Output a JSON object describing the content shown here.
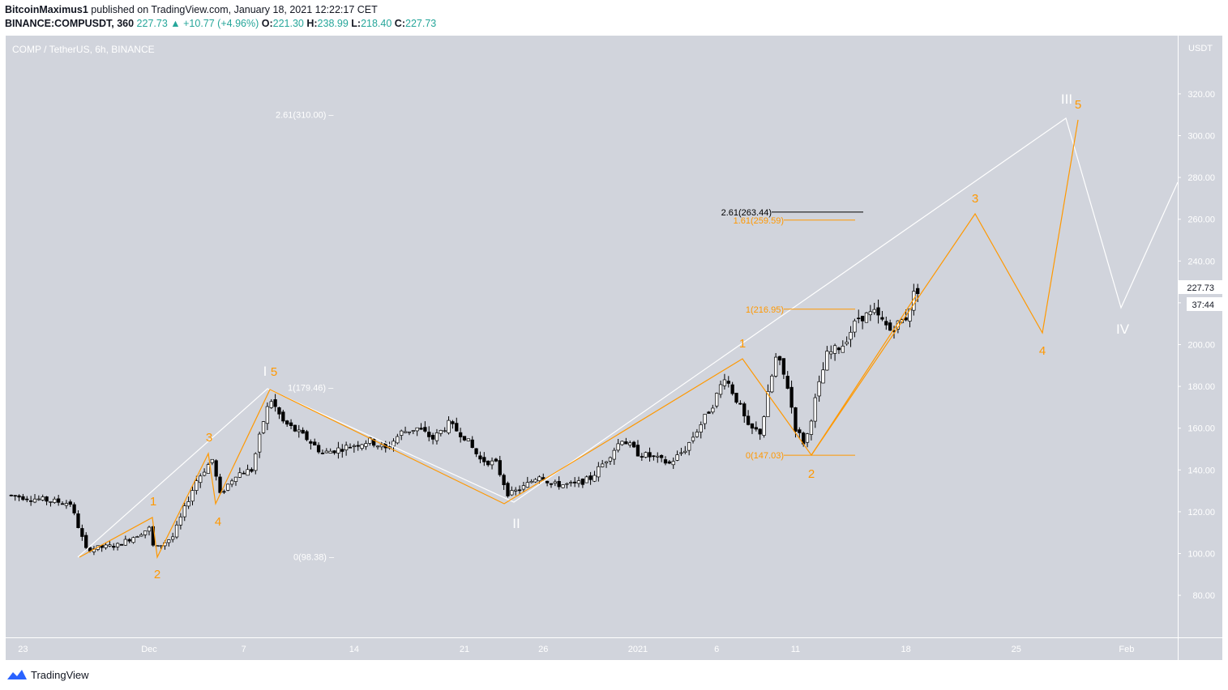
{
  "header": {
    "author": "BitcoinMaximus1",
    "published_text": "published on TradingView.com, January 18, 2021 12:22:17 CET",
    "symbol": "BINANCE:COMPUSDT, 360",
    "last": "227.73",
    "change": "+10.77 (+4.96%)",
    "o_label": "O:",
    "o": "221.30",
    "h_label": "H:",
    "h": "238.99",
    "l_label": "L:",
    "l": "218.40",
    "c_label": "C:",
    "c": "227.73"
  },
  "chart_data": {
    "type": "candlestick",
    "title": "COMP / TetherUS, 6h, BINANCE",
    "currency": "USDT",
    "y_ticks": [
      "80.00",
      "100.00",
      "120.00",
      "140.00",
      "160.00",
      "180.00",
      "200.00",
      "220.00",
      "240.00",
      "260.00",
      "280.00",
      "300.00",
      "320.00"
    ],
    "x_ticks": [
      "23",
      "Dec",
      "7",
      "14",
      "21",
      "26",
      "2021",
      "6",
      "11",
      "18",
      "25",
      "Feb"
    ],
    "ylim": [
      72,
      345
    ],
    "last_price": "227.73",
    "countdown": "37:44",
    "fib_levels": [
      {
        "label": "2.61(310.00)",
        "value": 310.0,
        "color": "#ffffff"
      },
      {
        "label": "1(179.46)",
        "value": 179.46,
        "color": "#ffffff"
      },
      {
        "label": "0(98.38)",
        "value": 98.38,
        "color": "#ffffff"
      },
      {
        "label": "2.61(263.44)",
        "value": 263.44,
        "color": "#000000"
      },
      {
        "label": "1.61(259.59)",
        "value": 259.59,
        "color": "#ff9800"
      },
      {
        "label": "1(216.95)",
        "value": 216.95,
        "color": "#ff9800"
      },
      {
        "label": "0(147.03)",
        "value": 147.03,
        "color": "#ff9800"
      }
    ],
    "wave_labels": {
      "orange": [
        "1",
        "2",
        "3",
        "4",
        "5",
        "1",
        "2",
        "3",
        "4",
        "5"
      ],
      "white": [
        "I",
        "II",
        "III",
        "IV"
      ]
    }
  },
  "branding": {
    "logo_text": "TradingView"
  },
  "colors": {
    "bg": "#d1d4dc",
    "orange": "#ff9800",
    "white": "#ffffff",
    "text": "#131722",
    "axis_text": "#787b86"
  }
}
